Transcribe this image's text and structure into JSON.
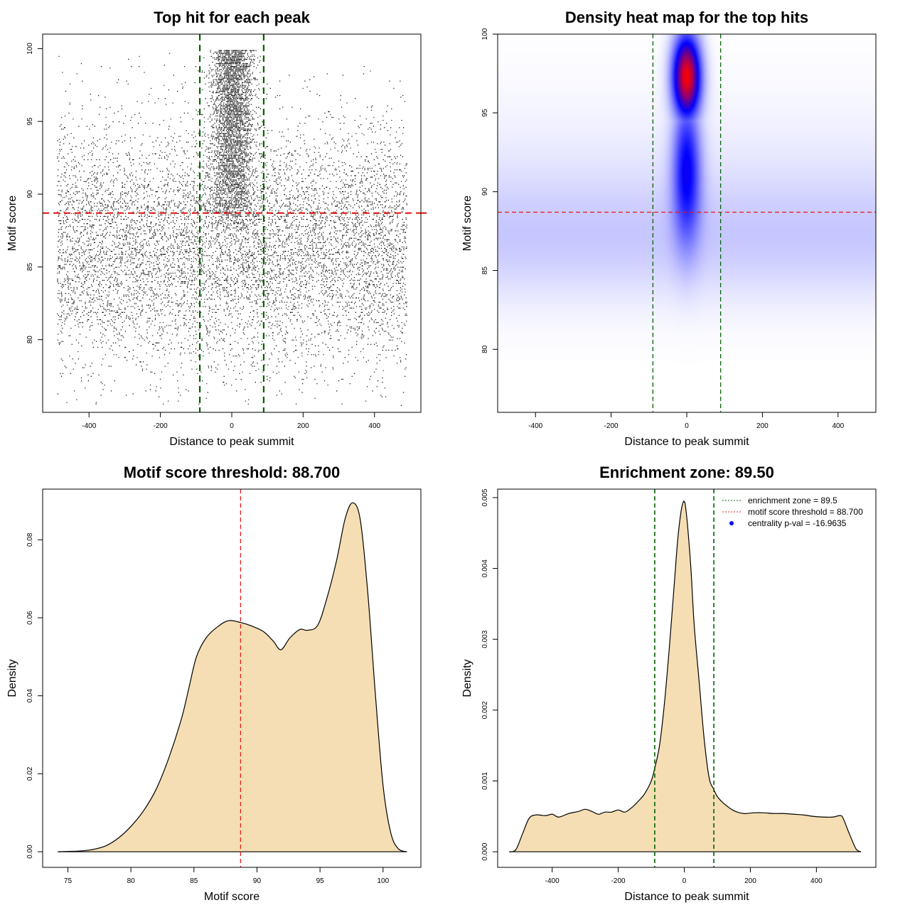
{
  "colors": {
    "point": "#000000",
    "threshold_line": "#e31a1c",
    "zone_line": "#006400",
    "density_fill": "#f5deb3",
    "heat_low": "#ffffff",
    "heat_mid": "#0000ff",
    "heat_high": "#ff0000",
    "legend_dot": "#0000ff"
  },
  "chart_data": [
    {
      "type": "scatter",
      "title": "Top hit for each peak",
      "xlabel": "Distance to peak summit",
      "ylabel": "Motif score",
      "xlim": [
        -530,
        530
      ],
      "ylim": [
        75,
        101
      ],
      "xticks": [
        -400,
        -200,
        0,
        200,
        400
      ],
      "xtick_labels": [
        "-400",
        "-200",
        "0",
        "200",
        "400"
      ],
      "yticks": [
        80,
        85,
        90,
        95,
        100
      ],
      "ytick_labels": [
        "80",
        "85",
        "90",
        "95",
        "100"
      ],
      "point_count": 12000,
      "x_range": [
        -490,
        490
      ],
      "central_cluster": {
        "center_x": 0,
        "score_range": [
          88,
          100
        ]
      },
      "hline": 88.7,
      "vlines": [
        -89.5,
        89.5
      ]
    },
    {
      "type": "heatmap",
      "title": "Density heat map for the top hits",
      "xlabel": "Distance to peak summit",
      "ylabel": "Motif score",
      "xlim": [
        -500,
        500
      ],
      "ylim": [
        76,
        100
      ],
      "xticks": [
        -400,
        -200,
        0,
        200,
        400
      ],
      "xtick_labels": [
        "-400",
        "-200",
        "0",
        "200",
        "400"
      ],
      "yticks": [
        80,
        85,
        90,
        95,
        100
      ],
      "ytick_labels": [
        "80",
        "85",
        "90",
        "95",
        "100"
      ],
      "peak": {
        "x": 0,
        "y": 97.3
      },
      "hline": 88.7,
      "vlines": [
        -89.5,
        89.5
      ]
    },
    {
      "type": "area",
      "title": "Motif score threshold: 88.700",
      "xlabel": "Motif score",
      "ylabel": "Density",
      "xlim": [
        73,
        103
      ],
      "ylim": [
        -0.004,
        0.093
      ],
      "xticks": [
        75,
        80,
        85,
        90,
        95,
        100
      ],
      "xtick_labels": [
        "75",
        "80",
        "85",
        "90",
        "95",
        "100"
      ],
      "yticks": [
        0,
        0.02,
        0.04,
        0.06,
        0.08
      ],
      "ytick_labels": [
        "0.00",
        "0.02",
        "0.04",
        "0.06",
        "0.08"
      ],
      "x": [
        74.2,
        76,
        77,
        78,
        79,
        80,
        81,
        82,
        83,
        84,
        84.6,
        85.2,
        86,
        87,
        87.8,
        88.7,
        89.5,
        90.5,
        91.3,
        91.9,
        92.6,
        93.4,
        94,
        94.8,
        95.5,
        96.3,
        97,
        97.6,
        98.2,
        98.8,
        99.4,
        100,
        100.6,
        101.2,
        101.9
      ],
      "y": [
        0,
        0.0002,
        0.0006,
        0.0015,
        0.0035,
        0.0065,
        0.0105,
        0.016,
        0.024,
        0.034,
        0.042,
        0.05,
        0.055,
        0.058,
        0.0593,
        0.0588,
        0.058,
        0.0565,
        0.054,
        0.0518,
        0.0548,
        0.057,
        0.0568,
        0.058,
        0.0645,
        0.0745,
        0.0855,
        0.0895,
        0.085,
        0.066,
        0.04,
        0.017,
        0.005,
        0.0008,
        0
      ],
      "vline": 88.7
    },
    {
      "type": "area",
      "title": "Enrichment zone: 89.50",
      "xlabel": "Distance to peak summit",
      "ylabel": "Density",
      "xlim": [
        -565,
        580
      ],
      "ylim": [
        -0.00022,
        0.00512
      ],
      "xticks": [
        -400,
        -200,
        0,
        200,
        400
      ],
      "xtick_labels": [
        "-400",
        "-200",
        "0",
        "200",
        "400"
      ],
      "yticks": [
        0,
        0.001,
        0.002,
        0.003,
        0.004,
        0.005
      ],
      "ytick_labels": [
        "0.000",
        "0.001",
        "0.002",
        "0.003",
        "0.004",
        "0.005"
      ],
      "x": [
        -530,
        -510,
        -490,
        -470,
        -450,
        -420,
        -400,
        -380,
        -350,
        -320,
        -300,
        -280,
        -260,
        -240,
        -220,
        -200,
        -180,
        -160,
        -140,
        -120,
        -100,
        -89.5,
        -75,
        -60,
        -45,
        -30,
        -20,
        -10,
        -3,
        0,
        3,
        10,
        20,
        30,
        45,
        60,
        75,
        89.5,
        100,
        120,
        150,
        180,
        210,
        240,
        270,
        300,
        330,
        360,
        390,
        420,
        450,
        470,
        480,
        500,
        520,
        535
      ],
      "y": [
        0,
        3e-05,
        0.00025,
        0.00047,
        0.00052,
        0.00051,
        0.00053,
        0.00049,
        0.00054,
        0.00057,
        0.0006,
        0.00057,
        0.00053,
        0.00056,
        0.00056,
        0.00059,
        0.00056,
        0.00062,
        0.00071,
        0.00082,
        0.001,
        0.00118,
        0.0015,
        0.0021,
        0.0029,
        0.0038,
        0.0044,
        0.0048,
        0.00494,
        0.00494,
        0.0049,
        0.0046,
        0.004,
        0.0032,
        0.0024,
        0.0016,
        0.00105,
        0.00088,
        0.00078,
        0.00068,
        0.00058,
        0.00054,
        0.00055,
        0.00055,
        0.00054,
        0.00054,
        0.00053,
        0.00052,
        0.0005,
        0.00049,
        0.00049,
        0.00051,
        0.00048,
        0.00025,
        4e-05,
        0
      ],
      "vlines": [
        -89.5,
        89.5
      ],
      "legend": [
        {
          "label": "enrichment zone = 89.5",
          "style": "dotted",
          "color": "#006400"
        },
        {
          "label": "motif score threshold = 88.700",
          "style": "dotted",
          "color": "#e31a1c"
        },
        {
          "label": "centrality p-val = -16.9635",
          "style": "dot",
          "color": "#0000ff"
        }
      ],
      "legend_position": "top-right"
    }
  ]
}
